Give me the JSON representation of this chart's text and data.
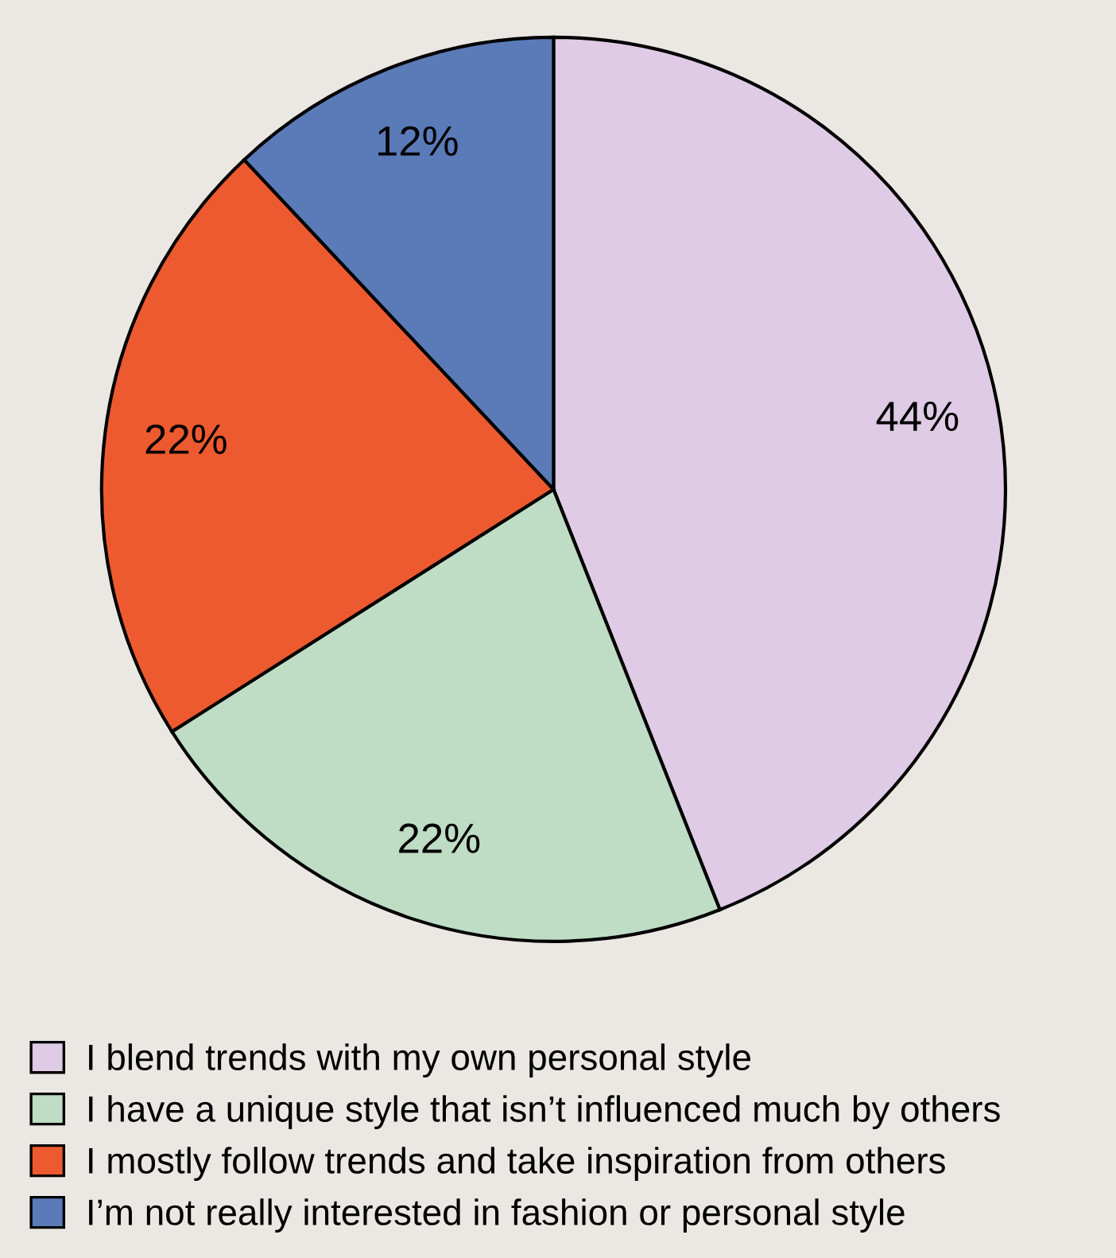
{
  "chart_data": {
    "type": "pie",
    "categories": [
      "I blend trends with my own personal style",
      "I have a unique style that isn’t influenced much by others",
      "I mostly follow trends and take inspiration from others",
      "I’m not really interested in fashion or personal style"
    ],
    "values": [
      44,
      22,
      22,
      12
    ],
    "colors": [
      "#dfcbe5",
      "#bfdcc5",
      "#ee5a2f",
      "#5a7bb8"
    ],
    "value_labels": [
      "44%",
      "22%",
      "22%",
      "12%"
    ],
    "legend": "bottom"
  }
}
